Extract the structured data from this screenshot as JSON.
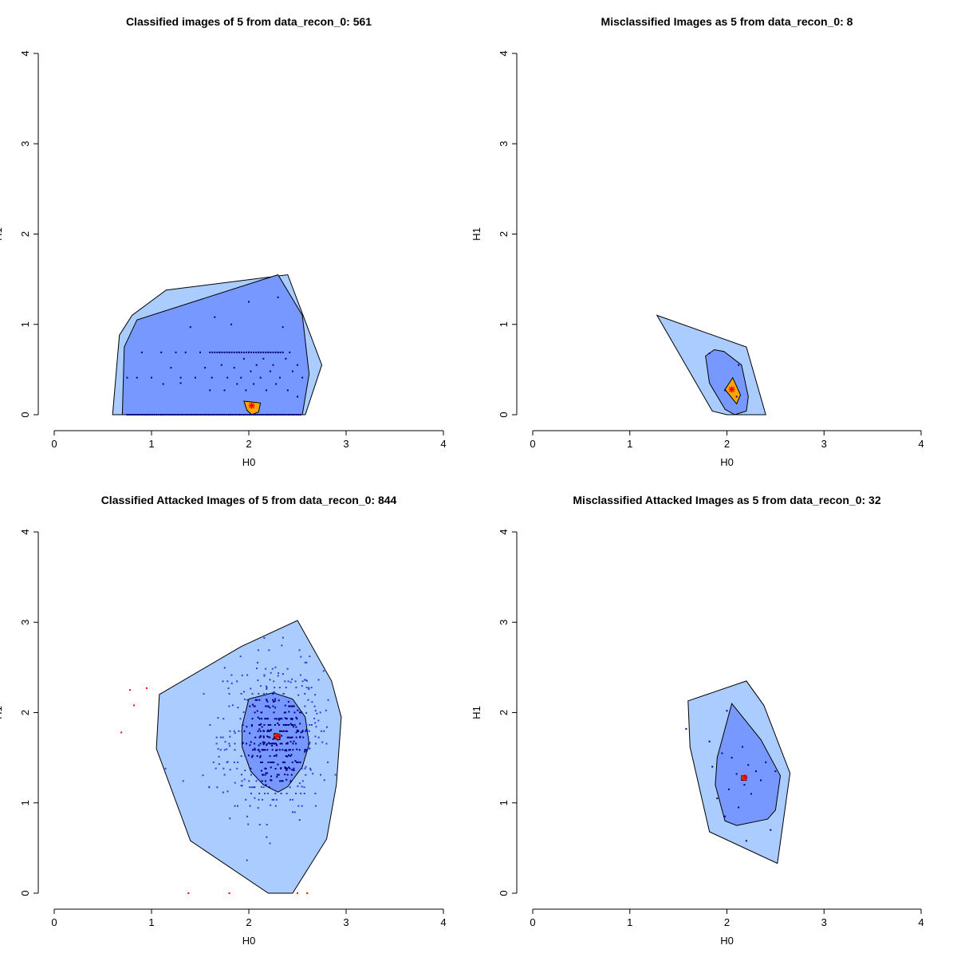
{
  "colors": {
    "outer_hull": "#aaccff",
    "middle_hull": "#7799ff",
    "inner_hull": "#ffa500",
    "points_core": "#000080",
    "points_mid": "#2b40e0",
    "points_outlier": "#ff0000",
    "median_marker": "#ff0000"
  },
  "chart_data": [
    {
      "type": "scatter",
      "title": "Classified images of 5 from data_recon_0: 561",
      "xlabel": "H0",
      "ylabel": "H1",
      "xlim": [
        0,
        4
      ],
      "ylim": [
        0,
        4
      ],
      "xticks": [
        "0",
        "1",
        "2",
        "3",
        "4"
      ],
      "yticks": [
        "0",
        "1",
        "2",
        "3",
        "4"
      ],
      "bagplot": {
        "outer_hull": [
          [
            0.6,
            0
          ],
          [
            2.58,
            0
          ],
          [
            2.75,
            0.55
          ],
          [
            2.4,
            1.55
          ],
          [
            1.15,
            1.38
          ],
          [
            0.8,
            1.1
          ],
          [
            0.67,
            0.88
          ]
        ],
        "middle_hull": [
          [
            0.7,
            0
          ],
          [
            2.55,
            0
          ],
          [
            2.62,
            0.45
          ],
          [
            2.55,
            1.1
          ],
          [
            2.3,
            1.55
          ],
          [
            0.85,
            1.05
          ],
          [
            0.72,
            0.75
          ]
        ],
        "inner_hull": [
          [
            1.95,
            0.15
          ],
          [
            2.12,
            0.13
          ],
          [
            2.1,
            0.03
          ],
          [
            2.03,
            0.0
          ],
          [
            1.98,
            0.05
          ]
        ],
        "median": [
          2.03,
          0.1
        ]
      },
      "points": [
        [
          0.75,
          0.41
        ],
        [
          0.85,
          0.41
        ],
        [
          0.9,
          0.69
        ],
        [
          1.0,
          0.41
        ],
        [
          1.1,
          0.69
        ],
        [
          1.12,
          0.34
        ],
        [
          1.2,
          0.52
        ],
        [
          1.25,
          0.69
        ],
        [
          1.3,
          0.35
        ],
        [
          1.3,
          0.41
        ],
        [
          1.35,
          0.69
        ],
        [
          1.4,
          0.97
        ],
        [
          1.45,
          0.41
        ],
        [
          1.5,
          0.69
        ],
        [
          1.55,
          0.52
        ],
        [
          1.6,
          0.27
        ],
        [
          1.62,
          0.41
        ],
        [
          1.65,
          1.08
        ],
        [
          1.7,
          0.69
        ],
        [
          1.72,
          0.55
        ],
        [
          1.75,
          0.27
        ],
        [
          1.78,
          0.41
        ],
        [
          1.8,
          0.69
        ],
        [
          1.82,
          1.0
        ],
        [
          1.85,
          0.52
        ],
        [
          1.88,
          0.34
        ],
        [
          1.9,
          0.69
        ],
        [
          1.92,
          0.41
        ],
        [
          1.95,
          0.62
        ],
        [
          1.97,
          0.27
        ],
        [
          2.0,
          1.25
        ],
        [
          2.0,
          0.69
        ],
        [
          2.02,
          0.48
        ],
        [
          2.05,
          0.34
        ],
        [
          2.08,
          0.55
        ],
        [
          2.1,
          0.69
        ],
        [
          2.12,
          0.41
        ],
        [
          2.15,
          0.62
        ],
        [
          2.18,
          0.27
        ],
        [
          2.2,
          0.69
        ],
        [
          2.22,
          0.48
        ],
        [
          2.25,
          0.55
        ],
        [
          2.28,
          0.34
        ],
        [
          2.3,
          1.3
        ],
        [
          2.3,
          0.69
        ],
        [
          2.32,
          0.41
        ],
        [
          2.35,
          0.97
        ],
        [
          2.38,
          0.62
        ],
        [
          2.4,
          0.27
        ],
        [
          2.42,
          0.69
        ],
        [
          2.45,
          0.48
        ],
        [
          2.5,
          0.55
        ],
        [
          1.55,
          0.0
        ],
        [
          1.8,
          0.0
        ],
        [
          1.9,
          0.0
        ],
        [
          2.2,
          0.0
        ],
        [
          1.45,
          0.0
        ],
        [
          2.45,
          0.0
        ],
        [
          1.1,
          0.0
        ],
        [
          0.95,
          0.0
        ],
        [
          2.5,
          0.2
        ],
        [
          2.55,
          0.41
        ]
      ],
      "outliers": []
    },
    {
      "type": "scatter",
      "title": "Misclassified Images as 5 from data_recon_0: 8",
      "xlabel": "H0",
      "ylabel": "H1",
      "xlim": [
        0,
        4
      ],
      "ylim": [
        0,
        4
      ],
      "xticks": [
        "0",
        "1",
        "2",
        "3",
        "4"
      ],
      "yticks": [
        "0",
        "1",
        "2",
        "3",
        "4"
      ],
      "bagplot": {
        "outer_hull": [
          [
            1.28,
            1.1
          ],
          [
            2.2,
            0.75
          ],
          [
            2.4,
            0.0
          ],
          [
            2.0,
            0.0
          ],
          [
            1.85,
            0.04
          ]
        ],
        "middle_hull": [
          [
            1.78,
            0.65
          ],
          [
            1.87,
            0.72
          ],
          [
            1.97,
            0.7
          ],
          [
            2.15,
            0.55
          ],
          [
            2.22,
            0.2
          ],
          [
            2.2,
            0.04
          ],
          [
            2.08,
            0.0
          ],
          [
            1.98,
            0.06
          ],
          [
            1.82,
            0.35
          ]
        ],
        "inner_hull": [
          [
            1.98,
            0.28
          ],
          [
            2.06,
            0.41
          ],
          [
            2.14,
            0.22
          ],
          [
            2.1,
            0.12
          ]
        ],
        "median": [
          2.05,
          0.28
        ]
      },
      "points": [
        [
          1.82,
          0.68
        ],
        [
          2.12,
          0.55
        ],
        [
          1.98,
          0.27
        ],
        [
          2.1,
          0.2
        ]
      ],
      "outliers": []
    },
    {
      "type": "scatter",
      "title": "Classified Attacked Images of 5 from data_recon_0: 844",
      "xlabel": "H0",
      "ylabel": "H1",
      "xlim": [
        0,
        4
      ],
      "ylim": [
        0,
        4
      ],
      "xticks": [
        "0",
        "1",
        "2",
        "3",
        "4"
      ],
      "yticks": [
        "0",
        "1",
        "2",
        "3",
        "4"
      ],
      "bagplot": {
        "outer_hull": [
          [
            1.08,
            2.2
          ],
          [
            1.92,
            2.73
          ],
          [
            2.5,
            3.02
          ],
          [
            2.85,
            2.35
          ],
          [
            2.95,
            1.95
          ],
          [
            2.9,
            1.2
          ],
          [
            2.8,
            0.6
          ],
          [
            2.45,
            0.0
          ],
          [
            2.2,
            0.0
          ],
          [
            1.4,
            0.58
          ],
          [
            1.05,
            1.6
          ]
        ],
        "middle_hull": [
          [
            2.0,
            2.15
          ],
          [
            2.25,
            2.22
          ],
          [
            2.45,
            2.15
          ],
          [
            2.58,
            1.95
          ],
          [
            2.62,
            1.65
          ],
          [
            2.55,
            1.4
          ],
          [
            2.4,
            1.18
          ],
          [
            2.3,
            1.12
          ],
          [
            2.15,
            1.2
          ],
          [
            2.02,
            1.35
          ],
          [
            1.93,
            1.62
          ],
          [
            1.93,
            1.85
          ]
        ],
        "inner_hull": [
          [
            2.26,
            1.77
          ],
          [
            2.32,
            1.76
          ],
          [
            2.32,
            1.7
          ],
          [
            2.26,
            1.71
          ]
        ],
        "median": [
          2.29,
          1.74
        ]
      },
      "points": [],
      "outliers": [
        [
          0.78,
          2.25
        ],
        [
          0.95,
          2.27
        ],
        [
          0.82,
          2.08
        ],
        [
          0.69,
          1.78
        ],
        [
          1.38,
          0.0
        ],
        [
          1.8,
          0.0
        ],
        [
          2.5,
          0.0
        ],
        [
          2.6,
          0.0
        ]
      ]
    },
    {
      "type": "scatter",
      "title": "Misclassified Attacked Images as 5 from data_recon_0: 32",
      "xlabel": "H0",
      "ylabel": "H1",
      "xlim": [
        0,
        4
      ],
      "ylim": [
        0,
        4
      ],
      "xticks": [
        "0",
        "1",
        "2",
        "3",
        "4"
      ],
      "yticks": [
        "0",
        "1",
        "2",
        "3",
        "4"
      ],
      "bagplot": {
        "outer_hull": [
          [
            1.6,
            2.13
          ],
          [
            2.2,
            2.35
          ],
          [
            2.38,
            2.08
          ],
          [
            2.65,
            1.33
          ],
          [
            2.52,
            0.33
          ],
          [
            1.82,
            0.68
          ],
          [
            1.62,
            1.62
          ]
        ],
        "middle_hull": [
          [
            2.05,
            2.1
          ],
          [
            2.35,
            1.7
          ],
          [
            2.55,
            1.3
          ],
          [
            2.5,
            0.92
          ],
          [
            2.42,
            0.82
          ],
          [
            2.1,
            0.75
          ],
          [
            1.98,
            0.8
          ],
          [
            1.88,
            1.2
          ],
          [
            1.9,
            1.5
          ]
        ],
        "inner_hull": [
          [
            2.15,
            1.3
          ],
          [
            2.2,
            1.3
          ],
          [
            2.2,
            1.25
          ],
          [
            2.15,
            1.25
          ]
        ],
        "median": [
          2.18,
          1.28
        ]
      },
      "points": [
        [
          1.58,
          1.82
        ],
        [
          1.82,
          1.68
        ],
        [
          1.9,
          1.05
        ],
        [
          1.95,
          1.55
        ],
        [
          1.98,
          0.85
        ],
        [
          2.02,
          1.15
        ],
        [
          2.05,
          1.5
        ],
        [
          2.1,
          1.32
        ],
        [
          2.12,
          0.95
        ],
        [
          2.16,
          1.62
        ],
        [
          2.18,
          1.2
        ],
        [
          2.22,
          1.42
        ],
        [
          2.25,
          1.1
        ],
        [
          2.3,
          1.35
        ],
        [
          2.35,
          1.25
        ],
        [
          2.4,
          1.45
        ],
        [
          2.45,
          0.7
        ],
        [
          2.5,
          1.35
        ],
        [
          2.0,
          2.02
        ],
        [
          1.85,
          1.4
        ],
        [
          2.2,
          0.58
        ]
      ],
      "outliers": []
    }
  ]
}
